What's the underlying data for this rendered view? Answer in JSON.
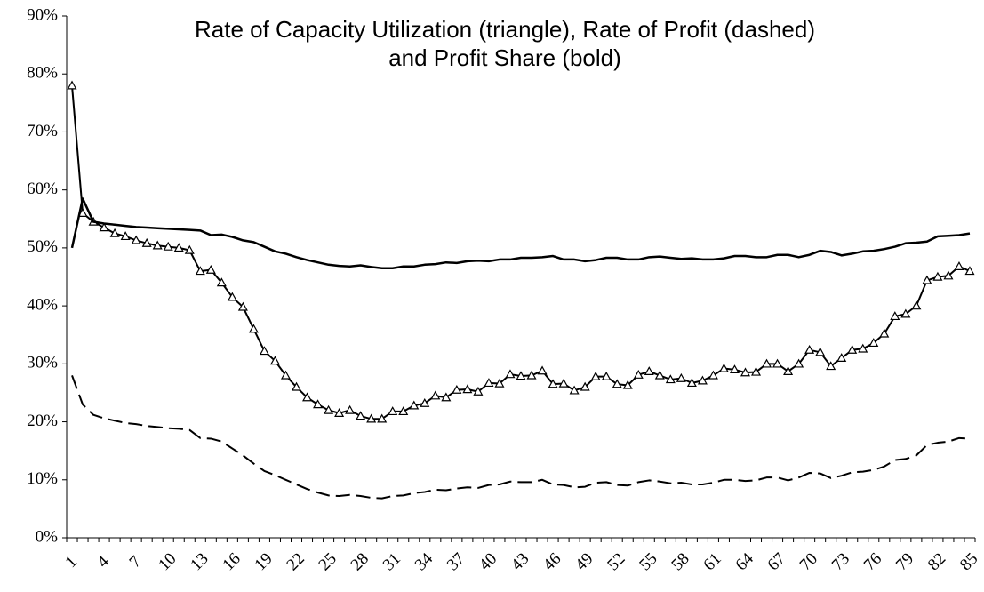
{
  "chart_data": {
    "type": "line",
    "title": [
      "Rate of Capacity Utilization (triangle), Rate of Profit (dashed)",
      "and Profit Share (bold)"
    ],
    "categories": [
      "1",
      null,
      null,
      "4",
      null,
      null,
      "7",
      null,
      null,
      "10",
      null,
      null,
      "13",
      null,
      null,
      "16",
      null,
      null,
      "19",
      null,
      null,
      "22",
      null,
      null,
      "25",
      null,
      null,
      "28",
      null,
      null,
      "31",
      null,
      null,
      "34",
      null,
      null,
      "37",
      null,
      null,
      "40",
      null,
      null,
      "43",
      null,
      null,
      "46",
      null,
      null,
      "49",
      null,
      null,
      "52",
      null,
      null,
      "55",
      null,
      null,
      "58",
      null,
      null,
      "61",
      null,
      null,
      "64",
      null,
      null,
      "67",
      null,
      null,
      "70",
      null,
      null,
      "73",
      null,
      null,
      "76",
      null,
      null,
      "79",
      null,
      null,
      "82",
      null,
      null,
      "85"
    ],
    "series": [
      {
        "color": "#000000",
        "marker": "triangle",
        "dash": false,
        "width": 2,
        "values": [
          78,
          56,
          54.5,
          53.5,
          52.5,
          52,
          51.3,
          50.8,
          50.4,
          50.2,
          50,
          49.6,
          46,
          46.2,
          44,
          41.5,
          39.8,
          36,
          32.2,
          30.5,
          28,
          26,
          24.2,
          23,
          22,
          21.5,
          22,
          21,
          20.5,
          20.5,
          21.8,
          21.8,
          22.8,
          23.2,
          24.5,
          24.2,
          25.5,
          25.6,
          25.2,
          26.7,
          26.6,
          28.2,
          27.9,
          28,
          28.8,
          26.5,
          26.6,
          25.4,
          26,
          27.8,
          27.8,
          26.5,
          26.3,
          28.1,
          28.7,
          28,
          27.3,
          27.5,
          26.7,
          27.1,
          28,
          29.2,
          29,
          28.5,
          28.6,
          30,
          30,
          28.7,
          30,
          32.4,
          32,
          29.6,
          31,
          32.4,
          32.6,
          33.6,
          35.2,
          38.2,
          38.6,
          40,
          44.4,
          45,
          45.2,
          46.8,
          46
        ]
      },
      {
        "color": "#000000",
        "marker": "none",
        "dash": true,
        "width": 2,
        "values": [
          28,
          23,
          21.2,
          20.6,
          20.2,
          19.8,
          19.6,
          19.3,
          19.1,
          18.9,
          18.8,
          18.6,
          17.2,
          17.1,
          16.6,
          15.4,
          14.2,
          12.8,
          11.5,
          10.8,
          10,
          9.2,
          8.4,
          7.8,
          7.3,
          7.2,
          7.4,
          7.2,
          6.9,
          6.8,
          7.2,
          7.3,
          7.7,
          7.9,
          8.3,
          8.2,
          8.5,
          8.7,
          8.6,
          9.1,
          9.2,
          9.7,
          9.6,
          9.6,
          10,
          9.2,
          9.1,
          8.7,
          8.8,
          9.5,
          9.6,
          9.1,
          9,
          9.6,
          9.9,
          9.7,
          9.4,
          9.5,
          9.2,
          9.2,
          9.5,
          10,
          10,
          9.8,
          9.9,
          10.4,
          10.4,
          9.9,
          10.4,
          11.2,
          11.1,
          10.3,
          10.7,
          11.3,
          11.4,
          11.7,
          12.3,
          13.4,
          13.6,
          14.2,
          16,
          16.4,
          16.6,
          17.2,
          17.1
        ]
      },
      {
        "color": "#000000",
        "marker": "none",
        "dash": false,
        "width": 2.5,
        "values": [
          50,
          58.5,
          54.5,
          54.2,
          54,
          53.8,
          53.6,
          53.5,
          53.4,
          53.3,
          53.2,
          53.1,
          53,
          52.2,
          52.3,
          51.9,
          51.3,
          51,
          50.2,
          49.4,
          49,
          48.4,
          47.9,
          47.5,
          47.1,
          46.9,
          46.8,
          47,
          46.7,
          46.5,
          46.5,
          46.8,
          46.8,
          47.1,
          47.2,
          47.5,
          47.4,
          47.7,
          47.8,
          47.7,
          48,
          48,
          48.3,
          48.3,
          48.4,
          48.6,
          48,
          48,
          47.7,
          47.9,
          48.3,
          48.3,
          48,
          48,
          48.4,
          48.5,
          48.3,
          48.1,
          48.2,
          48,
          48,
          48.2,
          48.6,
          48.6,
          48.4,
          48.4,
          48.8,
          48.8,
          48.4,
          48.8,
          49.5,
          49.3,
          48.7,
          49,
          49.4,
          49.5,
          49.8,
          50.2,
          50.8,
          50.9,
          51.1,
          52,
          52.1,
          52.2,
          52.5
        ]
      }
    ],
    "ylim": [
      0,
      90
    ],
    "yticks": [
      {
        "value": 0,
        "label": "0%"
      },
      {
        "value": 10,
        "label": "10%"
      },
      {
        "value": 20,
        "label": "20%"
      },
      {
        "value": 30,
        "label": "30%"
      },
      {
        "value": 40,
        "label": "40%"
      },
      {
        "value": 50,
        "label": "50%"
      },
      {
        "value": 60,
        "label": "60%"
      },
      {
        "value": 70,
        "label": "70%"
      },
      {
        "value": 80,
        "label": "80%"
      },
      {
        "value": 90,
        "label": "90%"
      }
    ],
    "grid": false
  }
}
